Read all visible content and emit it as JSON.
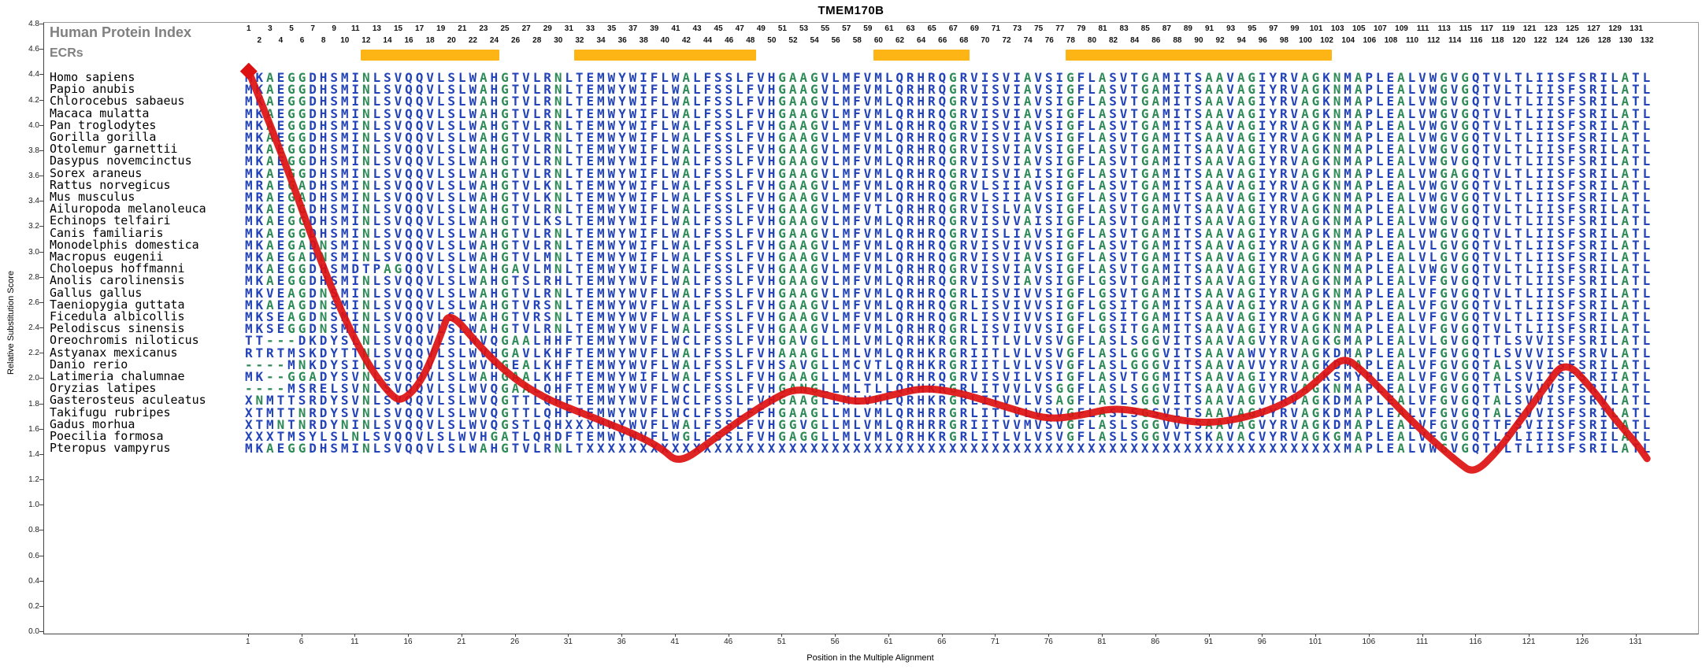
{
  "title": "TMEM170B",
  "header": {
    "hpi_label": "Human Protein Index",
    "ecrs_label": "ECRs"
  },
  "axes": {
    "y_label": "Relative Substitution Score",
    "x_label": "Position in the Multiple Alignment",
    "y_ticks": [
      "4.8",
      "4.6",
      "4.4",
      "4.2",
      "4.0",
      "3.8",
      "3.6",
      "3.4",
      "3.2",
      "3.0",
      "2.8",
      "2.6",
      "2.4",
      "2.2",
      "2.0",
      "1.8",
      "1.6",
      "1.4",
      "1.2",
      "1.0",
      "0.8",
      "0.6",
      "0.4",
      "0.2",
      "0.0"
    ],
    "x_ticks": [
      1,
      6,
      11,
      16,
      21,
      26,
      31,
      36,
      41,
      46,
      51,
      56,
      61,
      66,
      71,
      76,
      81,
      86,
      91,
      96,
      101,
      106,
      111,
      116,
      121,
      126,
      131
    ],
    "y_min": 0.0,
    "y_max": 4.8
  },
  "positions": {
    "count": 132,
    "odd": [
      1,
      3,
      5,
      7,
      9,
      11,
      13,
      15,
      17,
      19,
      21,
      23,
      25,
      27,
      29,
      31,
      33,
      35,
      37,
      39,
      41,
      43,
      45,
      47,
      49,
      51,
      53,
      55,
      57,
      59,
      61,
      63,
      65,
      67,
      69,
      71,
      73,
      75,
      77,
      79,
      81,
      83,
      85,
      87,
      89,
      91,
      93,
      95,
      97,
      99,
      101,
      103,
      105,
      107,
      109,
      111,
      113,
      115,
      117,
      119,
      121,
      123,
      125,
      127,
      129,
      131
    ],
    "even": [
      2,
      4,
      6,
      8,
      10,
      12,
      14,
      16,
      18,
      20,
      22,
      24,
      26,
      28,
      30,
      32,
      34,
      36,
      38,
      40,
      42,
      44,
      46,
      48,
      50,
      52,
      54,
      56,
      58,
      60,
      62,
      64,
      66,
      68,
      70,
      72,
      74,
      76,
      78,
      80,
      82,
      84,
      86,
      88,
      90,
      92,
      94,
      96,
      98,
      100,
      102,
      104,
      106,
      108,
      110,
      112,
      114,
      116,
      118,
      120,
      122,
      124,
      126,
      128,
      130,
      132
    ]
  },
  "ecrs": [
    {
      "start": 12,
      "end": 24
    },
    {
      "start": 32,
      "end": 48
    },
    {
      "start": 60,
      "end": 68
    },
    {
      "start": 78,
      "end": 102
    }
  ],
  "colors": {
    "sequence_blue": "#2343b8",
    "sequence_green": "#2E8B57",
    "curve_red": "#dd1111",
    "ecr_orange": "#fdb515",
    "header_gray": "#808080",
    "number_black": "#111111"
  },
  "green_residues": [
    "A",
    "G",
    "N",
    "-"
  ],
  "alignment": {
    "species": [
      {
        "name": "Homo sapiens",
        "sequence": "MKAEGGDHSMINLSVQQVLSLWAHGTVLRNLTEMWYWIFLWALFSSLFVHGAAGVLMFVMLQRHRQGRVISVIAVSIGFLASVTGAMITSAAVAGIYRVAGKNMAPLEALVWGVGQTVLTLIISFSRILATL"
      },
      {
        "name": "Papio anubis",
        "sequence": "MKAEGGDHSMINLSVQQVLSLWAHGTVLRNLTEMWYWIFLWALFSSLFVHGAAGVLMFVMLQRHRQGRVISVIAVSIGFLASVTGAMITSAAVAGIYRVAGKNMAPLEALVWGVGQTVLTLIISFSRILATL"
      },
      {
        "name": "Chlorocebus sabaeus",
        "sequence": "MKAEGGDHSMINLSVQQVLSLWAHGTVLRNLTEMWYWIFLWALFSSLFVHGAAGVLMFVMLQRHRQGRVISVIAVSIGFLASVTGAMITSAAVAGIYRVAGKNMAPLEALVWGVGQTVLTLIISFSRILATL"
      },
      {
        "name": "Macaca mulatta",
        "sequence": "MKAEGGDHSMINLSVQQVLSLWAHGTVLRNLTEMWYWIFLWALFSSLFVHGAAGVLMFVMLQRHRQGRVISVIAVSIGFLASVTGAMITSAAVAGIYRVAGKNMAPLEALVWGVGQTVLTLIISFSRILATL"
      },
      {
        "name": "Pan troglodytes",
        "sequence": "MKAEGGDHSMINLSVQQVLSLWAHGTVLRNLTEMWYWIFLWALFSSLFVHGAAGVLMFVMLQRHRQGRVISVIAVSIGFLASVTGAMITSAAVAGIYRVAGKNMAPLEALVWGVGQTVLTLIISFSRILATL"
      },
      {
        "name": "Gorilla gorilla",
        "sequence": "MKAEGGDHSMINLSVQQVLSLWAHGTVLRNLTEMWYWIFLWALFSSLFVHGAAGVLMFVMLQRHRQGRVISVIAVSIGFLASVTGAMITSAAVAGIYRVAGKNMAPLEALVWGVGQTVLTLIISFSRILATL"
      },
      {
        "name": "Otolemur garnettii",
        "sequence": "MKAEGGDHSMINLSVQQVLSLWAHGTVLRNLTEMWYWIFLWALFSSLFVHGAAGVLMFVMLQRHRQGRVISVIAVSIGFLASVTGAMITSAAVAGIYRVAGKNMAPLEALVWGVGQTVLTLIISFSRILATL"
      },
      {
        "name": "Dasypus novemcinctus",
        "sequence": "MKAEGGDHSMINLSVQQVLSLWAHGTVLRNLTEMWYWIFLWALFSSLFVHGAAGVLMFVMLQRHRQGRVISVIAVSIGFLASVTGAMITSAAVAGIYRVAGKNMAPLEALVWGVGQTVLTLIISFSRILATL"
      },
      {
        "name": "Sorex araneus",
        "sequence": "MKAEGGDHSMINLSVQQVLSLWAHGTVLRNLTEMWYWIFLWALFSSLFVHGAAGVLMFVMLQRHRQGRVISVIAISIGFLASVTGAMITSAAVAGIYRVAGKNMAPLEALVWGAGQTVLTLIISFSRILATL"
      },
      {
        "name": "Rattus norvegicus",
        "sequence": "MRAEGADHSMINLSVQQVLSLWAHGTVLKNLTEMWYWIFLWALFSSLFVHGAAGVLMFVMLQRHRQGRVLSIIAVSIGFLASVTGAMITSAAVAGIYRVAGKNMAPLEALVWGVGQTVLTLIISFSRILATL"
      },
      {
        "name": "Mus musculus",
        "sequence": "MRAEGADHSMINLSVQQVLSLWAHGTVLKNLTEMWYWIFLWALFSSLFVHGAAGVLMFVMLQRHRQGRVLSIIAVSIGFLASVTGAMITSAAVAGIYRVAGKNMAPLEALVWGVGQTVLTLIISFSRILATL"
      },
      {
        "name": "Ailuropoda melanoleuca",
        "sequence": "MKAEGGDHSMINLSVQQVLSLWAHGTVLRNLTEMWYWIFLWALFSSLFVHGAAGVLMFVTLQRHRQGRVISLVAVSIGFLASVTGAMVTSAAVAGIYRVAGKNMAPLEALVWGVGQTVLTLIISFSRILATL"
      },
      {
        "name": "Echinops telfairi",
        "sequence": "MKAEGGDHSMINLSVQQVLSLWAHGTVLKSLTEMWYWIFLWALFSSLFVHGAAGVLMFVMLQRHRQGRVISVVAISIGFLASVTGAMITSAAVAGIYRVAGKNMAPLEALVWGVGQTVLTLIISFSRILATL"
      },
      {
        "name": "Canis familiaris",
        "sequence": "MKAEGGDHSMINLSVQQVLSLWAHGTVLRNLTEMWYWIFLWALFSSLFVHGAAGVLMFVMLQRHRQGRVISLIAVSIGFLASVTGAMITSAAVAGIYRVAGKNMAPLEALVWGVGQTVLTLIISFSRILATL"
      },
      {
        "name": "Monodelphis domestica",
        "sequence": "MKAEGADNSMINLSVQQVLSLWAHGTVLRNLTEMWYWIFLWALFSSLFVHGAAGVLMFVMLQRHRQGRVISVIVVSIGFLASVTGAMITSAAVAGIYRVAGKNMAPLEALVLGVGQTVLTLIISFSRILATL"
      },
      {
        "name": "Macropus eugenii",
        "sequence": "MKAEGADNSMINLSVQQVLSLWAHGTVLMNLTEMWYWIFLWALFSSLFVHGAAGVLMFVMLQRHRQGRVISVIAVSIGFLASVTGAMITSAAVAGIYRVAGKNMAPLEALVLGVGQTVLTLIISFSRILATL"
      },
      {
        "name": "Choloepus hoffmanni",
        "sequence": "MKAEGGDHSMDTPAGQQVLSLWAHGAVLMNLTEMWYWIFLWALFSSLFVHGAAGVLMFVMLQRHRQGRVISVIAVSIGFLASVTGAMITSAAVAGIYRVAGKNMAPLEALVWGVGQTVLTLIISFSRILATL"
      },
      {
        "name": "Anolis carolinensis",
        "sequence": "MKAEGGDHSMINLSVQQVLSLWAHGTSLRHLTEMWYWVFLWALFSSLFVHGAAGVLMFVMLQRHRQGRVISVIAVSIGFLGSVTGAMITSAAVAGIYRVAGKNMAPLEALVFGVGQTVLTLIISFSRILATL"
      },
      {
        "name": "Gallus gallus",
        "sequence": "MKVEAGDNSMINLSVQQVLSLWAHGTVLRNLTEMWYWVFLWALFSSLFVHGAAGVLMFVMLQRHRQGRLISVIVVSIGFLGSVTGAMITSAAVAGIYRVAGKNMAPLEALVFGVGQTVLTLIISFSRILATL"
      },
      {
        "name": "Taeniopygia guttata",
        "sequence": "MKAEAGDNSMINLSVQQVLSLWAHGTVRSNLTEMWYWVFLWALFSSLFVHGAAGVLMFVMLQRHRQGRLISVIVVSIGFLGSITGAMITSAAVAGIYRVAGKNMAPLEALVFGVGQTVLTLIISFSRILATL"
      },
      {
        "name": "Ficedula albicollis",
        "sequence": "MKSEAGDNSMINLSVQQVLSLWAHGTVRSNLTEMWYWVFLWALFSSLFVHGAAGVLMFVMLQRHRQGRLISVIVVSIGFLGSITGAMITSAAVAGIYRVAGKNMAPLEALVFGVGQTVLTLIISFSRILATL"
      },
      {
        "name": "Pelodiscus sinensis",
        "sequence": "MKSEGGDNSMINLSVQQVLSLWAHGTVLRNLTEMWYWVFLWALFSSLFVHGAAGVLMFVMLQRHRQGRLISVIVVSIGFLGSITGAMITSAAVAGIYRVAGKNMAPLEALVFGVGQTVLTLIISFSRILATL"
      },
      {
        "name": "Oreochromis niloticus",
        "sequence": "TT---DKDYSLNLSVQQVLSLWVQGAALHHFTEMWYWVFLWCLFSSLFVHGAVGLLMLVMLQRHKRGRLITLVLVSVGFLASLSGGVITSAAVAGVYRVAGKGMAPLEALVLGVGQTTLSVVISFSRILATL"
      },
      {
        "name": "Astyanax mexicanus",
        "sequence": "RTRTMSKDYTTNLSVQQVLSLWVHGAVLKHFTEMWYWVFLWALFSSLFVHAAAGLLMLVMLQRHKRGRIITLVLVSVGFLASLGGGVITSAAVAWVYRVAGKDMAPLEALVFGVGQTLSVVVISFSRVLATL"
      },
      {
        "name": "Danio rerio",
        "sequence": "----MNKDYSINLSVQQVLSLWVHGEALKHFTEMWYWVFLWALFSSLFVHSAVGLLMCVTLQRHKRGRIITLVLVSVGFLASLGGGVITSAAVAVVYRVAGKDMAPLEALVFGVGQTALSVVISFSRILATL"
      },
      {
        "name": "Latimeria chalumnae",
        "sequence": "MK--GGADYSVNLSVQQVLSLWAHGAALKHFTEMWYWIFLWALFSSLFVHGAAGLLMLVMLQRHRQGRVISVILVSIGFLASVTGGMITSAAVAGIYRVAGKSMYPLEALVFGVGQTALSVIISFSRIIATL"
      },
      {
        "name": "Oryzias latipes",
        "sequence": "----MSRELSVNLSVQQVLSLWVQGAALQHFTEMWYWVFLWCLFSSLFVHGANGLLMLTLLQRHKRGRLITVVLVSGGFLASLSGGVITSAAVAGVYRVAGKNMAPLEALVFGVGQTTLSVVVSFSRILATL"
      },
      {
        "name": "Gasterosteus aculeatus",
        "sequence": "XNMTTSRDYSVNLSVQQVLSLWVQGTTLQHFTEMWYWVFLWCLFSSLFVHGAAGLLMLVMLQRHKRGRLITVVLVSAGFLASLSGGVITSAAVAGVYRVAGKDMAPLEALVFGVGQTALSVVISFSRVLATL"
      },
      {
        "name": "Takifugu rubripes",
        "sequence": "XTMTTNRDYSVNLSVQQVLSLWVQGTTLQHFTEMWYWVFLWCLFSSLFFHGAAGLLMLVMLQRHRRGRLITLVLVSVGFLASLSGSVITSAAVAGVYRVAGKDMAPLEALVFGVGQTALSVVISFSRILATL"
      },
      {
        "name": "Gadus morhua",
        "sequence": "XTMNTNRDYNINLSVQQVLSLWVQGSTLQHXXXMWYWVFLWALFSSLFVHGGVGLLMLVMLQRHRRGRIITVVMVSVGFLASLSGGVVTSAAVAGVYRVAGKDMAPLEALVFGVGQTTFSVIISFSRILATL"
      },
      {
        "name": "Poecilia formosa",
        "sequence": "XXXTMSYLSLNLSVQQVLSLWVHGATLQHDFTEMWYWVFLWGLFSSLFVHGAGGLLMLVMLQRHKRGRLITLVLVSVGFLASLSGGVVTSKAVACVYRVAGKGMAPLEALVFGVGQTLSLIIISFSRILATL"
      },
      {
        "name": "Pteropus vampyrus",
        "sequence": "MKAEGGDHSMINLSVQQVLSLWAHGTVLRNLTXXXXXXXXXXXXXXXXXXXXXXXXXXXXXXXXXXXXXXXXXXXXXXXXXXXXXXXXXXXXXXXXXXXXXXXMAPLEALVWGVGQTVLTLIISFSRILATL"
      }
    ]
  },
  "chart_data": {
    "type": "line",
    "title": "TMEM170B",
    "xlabel": "Position in the Multiple Alignment",
    "ylabel": "Relative Substitution Score",
    "xlim": [
      1,
      132
    ],
    "ylim": [
      0,
      4.8
    ],
    "grid": false,
    "legend": "none",
    "start_marker": "diamond",
    "x": [
      1,
      4.3,
      6.9,
      9.5,
      12.1,
      14.3,
      15.4,
      17.3,
      19.1,
      19.8,
      22.8,
      25.7,
      28.7,
      31.6,
      34.6,
      37.5,
      39.7,
      41.3,
      44.2,
      47.1,
      50.1,
      52.3,
      55.3,
      58.2,
      61.2,
      64.1,
      67.1,
      70,
      73,
      75.9,
      78.9,
      81.8,
      84.8,
      87.7,
      90.7,
      93.6,
      96.6,
      99.5,
      101.7,
      103.6,
      105.4,
      107.6,
      109.8,
      112.1,
      114.3,
      115.8,
      118,
      120.2,
      122.4,
      124.3,
      126.8,
      129,
      130.9,
      132
    ],
    "y": [
      4.43,
      3.74,
      3.12,
      2.56,
      2.12,
      1.87,
      1.82,
      1.99,
      2.37,
      2.54,
      2.24,
      2.01,
      1.85,
      1.75,
      1.65,
      1.55,
      1.45,
      1.33,
      1.5,
      1.68,
      1.84,
      1.93,
      1.87,
      1.81,
      1.87,
      1.93,
      1.9,
      1.83,
      1.75,
      1.68,
      1.71,
      1.77,
      1.74,
      1.68,
      1.65,
      1.68,
      1.75,
      1.87,
      2.03,
      2.18,
      2.06,
      1.87,
      1.68,
      1.5,
      1.34,
      1.25,
      1.43,
      1.68,
      1.93,
      2.15,
      1.93,
      1.68,
      1.5,
      1.37
    ]
  }
}
